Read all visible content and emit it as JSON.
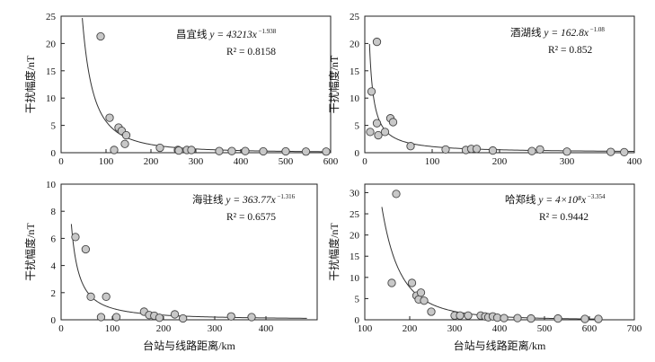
{
  "figure": {
    "y_axis_label": "干扰幅度/nT",
    "x_axis_label": "台站与线路距离/km"
  },
  "chart_data": [
    {
      "type": "scatter",
      "name": "changyi",
      "equation_prefix": "昌宜线",
      "equation_main": "y = 43213x",
      "equation_exponent": "−1.938",
      "r2": "R² = 0.8158",
      "model": {
        "a": 43213,
        "b": -1.938,
        "x_start": 45,
        "x_end": 600
      },
      "xlim": [
        0,
        600
      ],
      "ylim": [
        0,
        25
      ],
      "xticks": [
        0,
        100,
        200,
        300,
        400,
        500,
        600
      ],
      "yticks": [
        0,
        5,
        10,
        15,
        20,
        25
      ],
      "points": [
        [
          88,
          21.3
        ],
        [
          108,
          6.4
        ],
        [
          118,
          0.5
        ],
        [
          128,
          4.6
        ],
        [
          135,
          4.0
        ],
        [
          142,
          1.6
        ],
        [
          145,
          3.2
        ],
        [
          220,
          0.9
        ],
        [
          260,
          0.5
        ],
        [
          262,
          0.4
        ],
        [
          280,
          0.5
        ],
        [
          290,
          0.5
        ],
        [
          352,
          0.3
        ],
        [
          380,
          0.3
        ],
        [
          410,
          0.3
        ],
        [
          450,
          0.25
        ],
        [
          500,
          0.25
        ],
        [
          545,
          0.2
        ],
        [
          590,
          0.2
        ]
      ]
    },
    {
      "type": "scatter",
      "name": "jiuhu",
      "equation_prefix": "酒湖线",
      "equation_main": "y = 162.8x",
      "equation_exponent": "−1.08",
      "r2": "R² = 0.852",
      "model": {
        "a": 162.8,
        "b": -1.08,
        "x_start": 7,
        "x_end": 400
      },
      "xlim": [
        0,
        400
      ],
      "ylim": [
        0,
        25
      ],
      "xticks": [
        0,
        100,
        200,
        300,
        400
      ],
      "yticks": [
        0,
        5,
        10,
        15,
        20,
        25
      ],
      "points": [
        [
          10,
          11.2
        ],
        [
          8,
          3.8
        ],
        [
          18,
          20.3
        ],
        [
          18,
          5.4
        ],
        [
          20,
          3.2
        ],
        [
          30,
          3.8
        ],
        [
          38,
          6.3
        ],
        [
          42,
          5.6
        ],
        [
          68,
          1.2
        ],
        [
          120,
          0.6
        ],
        [
          150,
          0.5
        ],
        [
          158,
          0.7
        ],
        [
          166,
          0.7
        ],
        [
          190,
          0.4
        ],
        [
          248,
          0.3
        ],
        [
          260,
          0.6
        ],
        [
          300,
          0.2
        ],
        [
          365,
          0.15
        ],
        [
          385,
          0.1
        ]
      ]
    },
    {
      "type": "scatter",
      "name": "haizhu",
      "equation_prefix": "海驻线",
      "equation_main": "y = 363.77x",
      "equation_exponent": "−1.316",
      "r2": "R² = 0.6575",
      "model": {
        "a": 363.77,
        "b": -1.316,
        "x_start": 20,
        "x_end": 480
      },
      "xlim": [
        0,
        500
      ],
      "ylim": [
        0,
        10
      ],
      "xticks": [
        0,
        100,
        200,
        300,
        400
      ],
      "yticks": [
        0,
        2,
        4,
        6,
        8,
        10
      ],
      "points": [
        [
          28,
          6.1
        ],
        [
          48,
          5.2
        ],
        [
          58,
          1.7
        ],
        [
          78,
          0.2
        ],
        [
          88,
          1.7
        ],
        [
          108,
          0.2
        ],
        [
          162,
          0.6
        ],
        [
          172,
          0.35
        ],
        [
          182,
          0.3
        ],
        [
          192,
          0.15
        ],
        [
          222,
          0.4
        ],
        [
          238,
          0.1
        ],
        [
          332,
          0.25
        ],
        [
          372,
          0.2
        ]
      ]
    },
    {
      "type": "scatter",
      "name": "hazheng",
      "equation_prefix": "哈郑线",
      "equation_main": "y = 4×10⁸x",
      "equation_exponent": "−3.354",
      "r2": "R² = 0.9442",
      "model": {
        "a": 400000000,
        "b": -3.354,
        "x_start": 138,
        "x_end": 620
      },
      "xlim": [
        100,
        700
      ],
      "ylim": [
        0,
        32
      ],
      "xticks": [
        100,
        200,
        300,
        400,
        500,
        600,
        700
      ],
      "yticks": [
        0,
        5,
        10,
        15,
        20,
        25,
        30
      ],
      "points": [
        [
          160,
          8.7
        ],
        [
          170,
          29.7
        ],
        [
          205,
          8.7
        ],
        [
          215,
          5.7
        ],
        [
          220,
          4.8
        ],
        [
          225,
          6.4
        ],
        [
          232,
          4.5
        ],
        [
          248,
          1.9
        ],
        [
          300,
          1.0
        ],
        [
          312,
          1.0
        ],
        [
          330,
          1.0
        ],
        [
          358,
          1.0
        ],
        [
          368,
          0.8
        ],
        [
          375,
          0.6
        ],
        [
          385,
          0.8
        ],
        [
          395,
          0.5
        ],
        [
          410,
          0.4
        ],
        [
          440,
          0.4
        ],
        [
          470,
          0.3
        ],
        [
          530,
          0.3
        ],
        [
          590,
          0.2
        ],
        [
          620,
          0.2
        ]
      ]
    }
  ]
}
